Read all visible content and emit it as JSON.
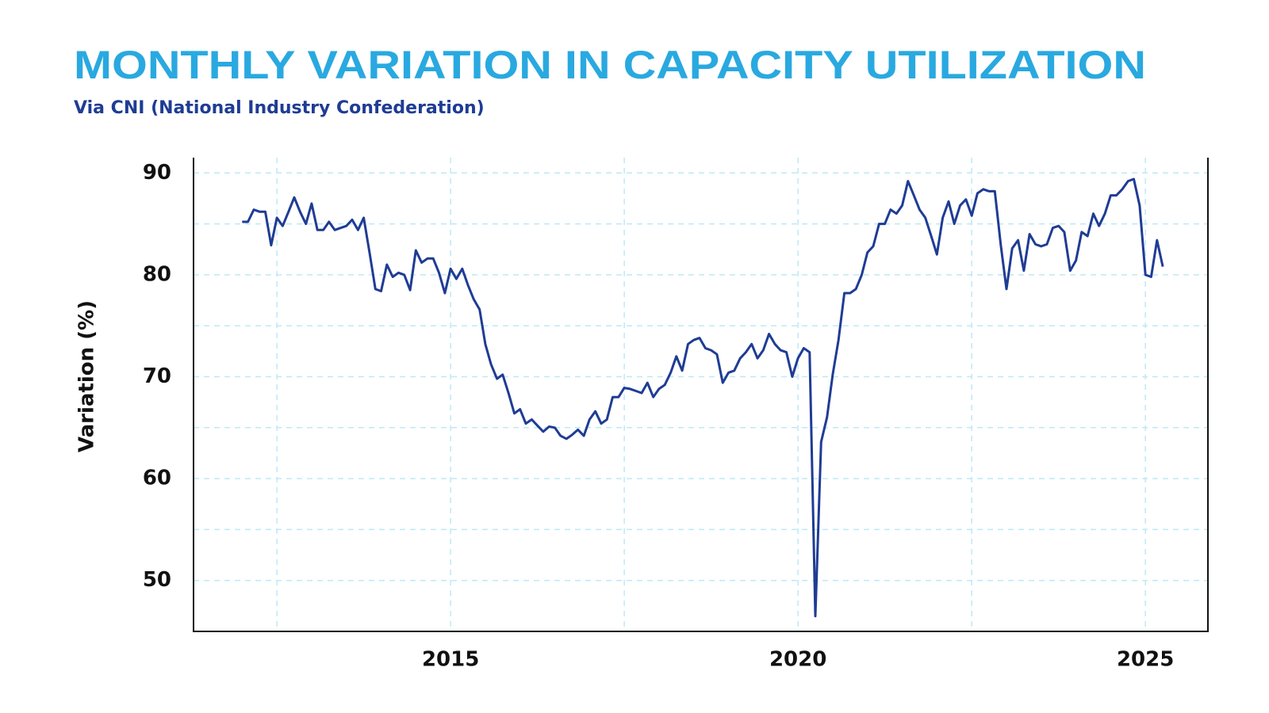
{
  "chart_data": {
    "type": "line",
    "title": "MONTHLY VARIATION IN CAPACITY UTILIZATION",
    "subtitle": "Via CNI (National Industry Confederation)",
    "y_label": "Variation (%)",
    "x": [
      2012,
      2012.083,
      2012.167,
      2012.25,
      2012.333,
      2012.417,
      2012.5,
      2012.583,
      2012.667,
      2012.75,
      2012.833,
      2012.917,
      2013,
      2013.083,
      2013.167,
      2013.25,
      2013.333,
      2013.417,
      2013.5,
      2013.583,
      2013.667,
      2013.75,
      2013.833,
      2013.917,
      2014,
      2014.083,
      2014.167,
      2014.25,
      2014.333,
      2014.417,
      2014.5,
      2014.583,
      2014.667,
      2014.75,
      2014.833,
      2014.917,
      2015,
      2015.083,
      2015.167,
      2015.25,
      2015.333,
      2015.417,
      2015.5,
      2015.583,
      2015.667,
      2015.75,
      2015.833,
      2015.917,
      2016,
      2016.083,
      2016.167,
      2016.25,
      2016.333,
      2016.417,
      2016.5,
      2016.583,
      2016.667,
      2016.75,
      2016.833,
      2016.917,
      2017,
      2017.083,
      2017.167,
      2017.25,
      2017.333,
      2017.417,
      2017.5,
      2017.583,
      2017.667,
      2017.75,
      2017.833,
      2017.917,
      2018,
      2018.083,
      2018.167,
      2018.25,
      2018.333,
      2018.417,
      2018.5,
      2018.583,
      2018.667,
      2018.75,
      2018.833,
      2018.917,
      2019,
      2019.083,
      2019.167,
      2019.25,
      2019.333,
      2019.417,
      2019.5,
      2019.583,
      2019.667,
      2019.75,
      2019.833,
      2019.917,
      2020,
      2020.083,
      2020.167,
      2020.25,
      2020.333,
      2020.417,
      2020.5,
      2020.583,
      2020.667,
      2020.75,
      2020.833,
      2020.917,
      2021,
      2021.083,
      2021.167,
      2021.25,
      2021.333,
      2021.417,
      2021.5,
      2021.583,
      2021.667,
      2021.75,
      2021.833,
      2021.917,
      2022,
      2022.083,
      2022.167,
      2022.25,
      2022.333,
      2022.417,
      2022.5,
      2022.583,
      2022.667,
      2022.75,
      2022.833,
      2022.917,
      2023,
      2023.083,
      2023.167,
      2023.25,
      2023.333,
      2023.417,
      2023.5,
      2023.583,
      2023.667,
      2023.75,
      2023.833,
      2023.917,
      2024,
      2024.083,
      2024.167,
      2024.25,
      2024.333,
      2024.417,
      2024.5,
      2024.583,
      2024.667,
      2024.75,
      2024.833,
      2024.917,
      2025,
      2025.083,
      2025.167,
      2025.25
    ],
    "series": [
      {
        "color": "#1f3c94",
        "values": [
          85.2,
          85.2,
          86.4,
          86.2,
          86.2,
          82.9,
          85.6,
          84.8,
          86.2,
          87.6,
          86.2,
          85.0,
          87.0,
          84.4,
          84.4,
          85.2,
          84.4,
          84.6,
          84.8,
          85.4,
          84.4,
          85.6,
          82.2,
          78.6,
          78.4,
          81.0,
          79.8,
          80.2,
          80.0,
          78.5,
          82.4,
          81.2,
          81.6,
          81.6,
          80.2,
          78.2,
          80.6,
          79.6,
          80.6,
          79.0,
          77.6,
          76.6,
          73.2,
          71.2,
          69.8,
          70.2,
          68.4,
          66.4,
          66.8,
          65.4,
          65.8,
          65.2,
          64.6,
          65.1,
          65.0,
          64.2,
          63.9,
          64.3,
          64.8,
          64.2,
          65.8,
          66.6,
          65.4,
          65.8,
          68.0,
          68.0,
          68.9,
          68.8,
          68.6,
          68.4,
          69.4,
          68.0,
          68.8,
          69.2,
          70.4,
          72.0,
          70.6,
          73.2,
          73.6,
          73.8,
          72.8,
          72.6,
          72.2,
          69.4,
          70.4,
          70.6,
          71.8,
          72.4,
          73.2,
          71.8,
          72.6,
          74.2,
          73.2,
          72.6,
          72.4,
          70.0,
          71.8,
          72.8,
          72.4,
          46.5,
          63.6,
          66.0,
          70.2,
          73.6,
          78.2,
          78.2,
          78.6,
          80.0,
          82.2,
          82.8,
          85.0,
          85.0,
          86.4,
          86.0,
          86.8,
          89.2,
          87.8,
          86.4,
          85.6,
          83.8,
          82.0,
          85.6,
          87.2,
          85.0,
          86.8,
          87.4,
          85.8,
          88.0,
          88.4,
          88.2,
          88.2,
          83.0,
          78.6,
          82.6,
          83.4,
          80.4,
          84.0,
          83.0,
          82.8,
          83.0,
          84.6,
          84.8,
          84.2,
          80.4,
          81.4,
          84.2,
          83.8,
          86.0,
          84.8,
          86.0,
          87.8,
          87.8,
          88.4,
          89.2,
          89.4,
          86.8,
          80.0,
          79.8,
          83.4,
          80.8
        ]
      }
    ],
    "xlim": [
      2011.3,
      2025.9
    ],
    "ylim": [
      45,
      91.5
    ],
    "xticks": [
      2015,
      2020,
      2025
    ],
    "yticks": [
      50,
      60,
      70,
      80,
      90
    ],
    "x_minor_ticks": [
      2012.5,
      2017.5,
      2022.5
    ],
    "y_minor_ticks": [
      55,
      65,
      75,
      85
    ],
    "grid": true,
    "grid_color": "#bde9f6",
    "title_color": "#29a9e0",
    "subtitle_color": "#1f3c94"
  }
}
